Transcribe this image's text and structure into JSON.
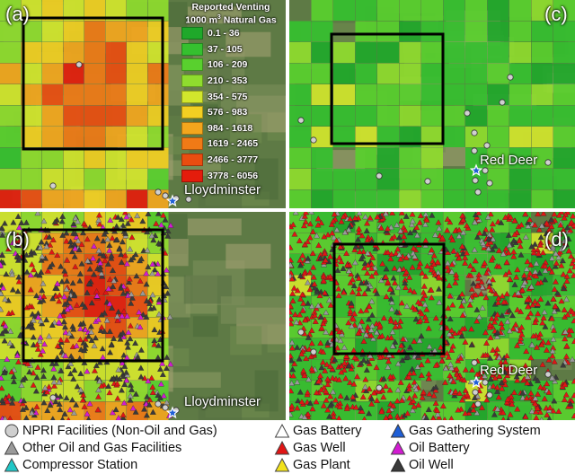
{
  "panels": {
    "a": {
      "letter": "(a)",
      "city": "Lloydminster"
    },
    "b": {
      "letter": "(b)",
      "city": "Lloydminster"
    },
    "c": {
      "letter": "(c)",
      "city": "Red Deer"
    },
    "d": {
      "letter": "(d)",
      "city": "Red Deer"
    }
  },
  "color_scale": {
    "title_line1": "Reported Venting",
    "title_line2_pre": "1000 m",
    "title_line2_sup": "3",
    "title_line2_post": " Natural Gas",
    "classes": [
      {
        "range": "0.1 - 36",
        "color": "#1fa82a"
      },
      {
        "range": "37 - 105",
        "color": "#35c02f"
      },
      {
        "range": "106 - 209",
        "color": "#59d02e"
      },
      {
        "range": "210 - 353",
        "color": "#8fdc2e"
      },
      {
        "range": "354 - 575",
        "color": "#d2e62c"
      },
      {
        "range": "576 - 983",
        "color": "#f2cf22"
      },
      {
        "range": "984 - 1618",
        "color": "#f3a61d"
      },
      {
        "range": "1619 - 2465",
        "color": "#f07a16"
      },
      {
        "range": "2466 - 3777",
        "color": "#ea4d10"
      },
      {
        "range": "3778 - 6056",
        "color": "#e41c0c"
      }
    ]
  },
  "legend": {
    "items": [
      {
        "label": "NPRI Facilities (Non-Oil and Gas)",
        "symbol": "circle-icon",
        "color": "#cfcfcf"
      },
      {
        "label": "Gas Battery",
        "symbol": "triangle-icon",
        "color": "#ffffff"
      },
      {
        "label": "Gas Gathering System",
        "symbol": "triangle-icon",
        "color": "#1f5fd6"
      },
      {
        "label": "Other Oil and Gas Facilities",
        "symbol": "triangle-icon",
        "color": "#9a9a9a"
      },
      {
        "label": "Gas Well",
        "symbol": "triangle-icon",
        "color": "#e01515"
      },
      {
        "label": "Oil Battery",
        "symbol": "triangle-icon",
        "color": "#d21bd2"
      },
      {
        "label": "Compressor Station",
        "symbol": "triangle-icon",
        "color": "#1fc7c7"
      },
      {
        "label": "Gas Plant",
        "symbol": "triangle-icon",
        "color": "#f2e21b"
      },
      {
        "label": "Oil Well",
        "symbol": "triangle-icon",
        "color": "#3a3a3a"
      }
    ]
  }
}
